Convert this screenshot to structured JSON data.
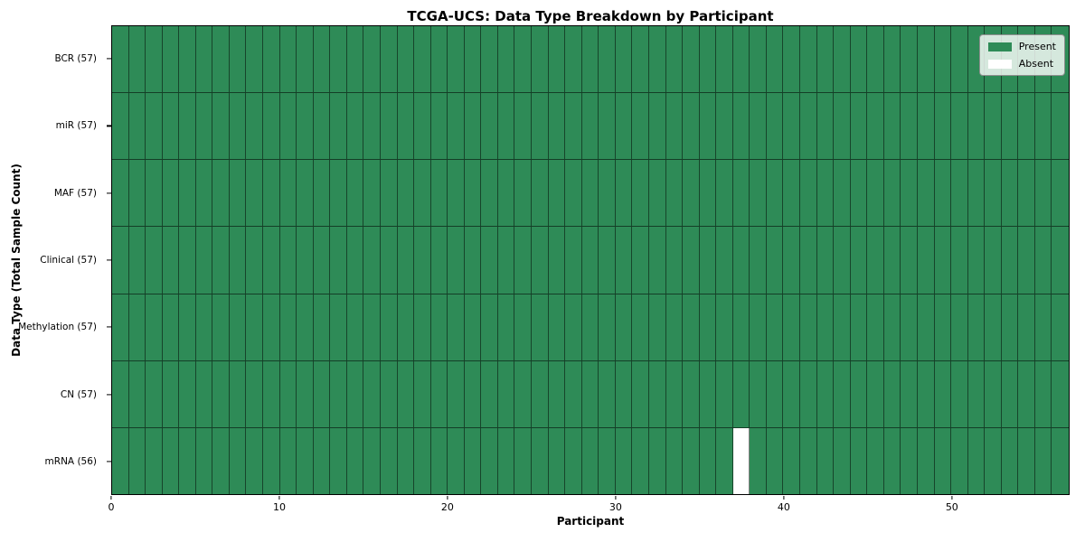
{
  "title": "TCGA-UCS: Data Type Breakdown by Participant",
  "chart_data": {
    "type": "heatmap",
    "title": "TCGA-UCS: Data Type Breakdown by Participant",
    "xlabel": "Participant",
    "ylabel": "Data Type (Total Sample Count)",
    "n_participants": 57,
    "x_ticks": [
      0,
      10,
      20,
      30,
      40,
      50
    ],
    "x_range": [
      0,
      57
    ],
    "grid": "cell-edges",
    "legend_position": "upper right",
    "rows": [
      {
        "label": "BCR (57)",
        "data_type": "BCR",
        "sample_count": 57,
        "absent_participants": []
      },
      {
        "label": "miR (57)",
        "data_type": "miR",
        "sample_count": 57,
        "absent_participants": []
      },
      {
        "label": "MAF (57)",
        "data_type": "MAF",
        "sample_count": 57,
        "absent_participants": []
      },
      {
        "label": "Clinical (57)",
        "data_type": "Clinical",
        "sample_count": 57,
        "absent_participants": []
      },
      {
        "label": "Methylation (57)",
        "data_type": "Methylation",
        "sample_count": 57,
        "absent_participants": []
      },
      {
        "label": "CN (57)",
        "data_type": "CN",
        "sample_count": 57,
        "absent_participants": []
      },
      {
        "label": "mRNA (56)",
        "data_type": "mRNA",
        "sample_count": 56,
        "absent_participants": [
          37
        ]
      }
    ],
    "legend": [
      {
        "label": "Present",
        "color": "#2E8B57"
      },
      {
        "label": "Absent",
        "color": "#FFFFFF"
      }
    ],
    "colors": {
      "present": "#2E8B57",
      "absent": "#FFFFFF",
      "cell_edge": "rgba(0,0,0,0.5)"
    }
  }
}
